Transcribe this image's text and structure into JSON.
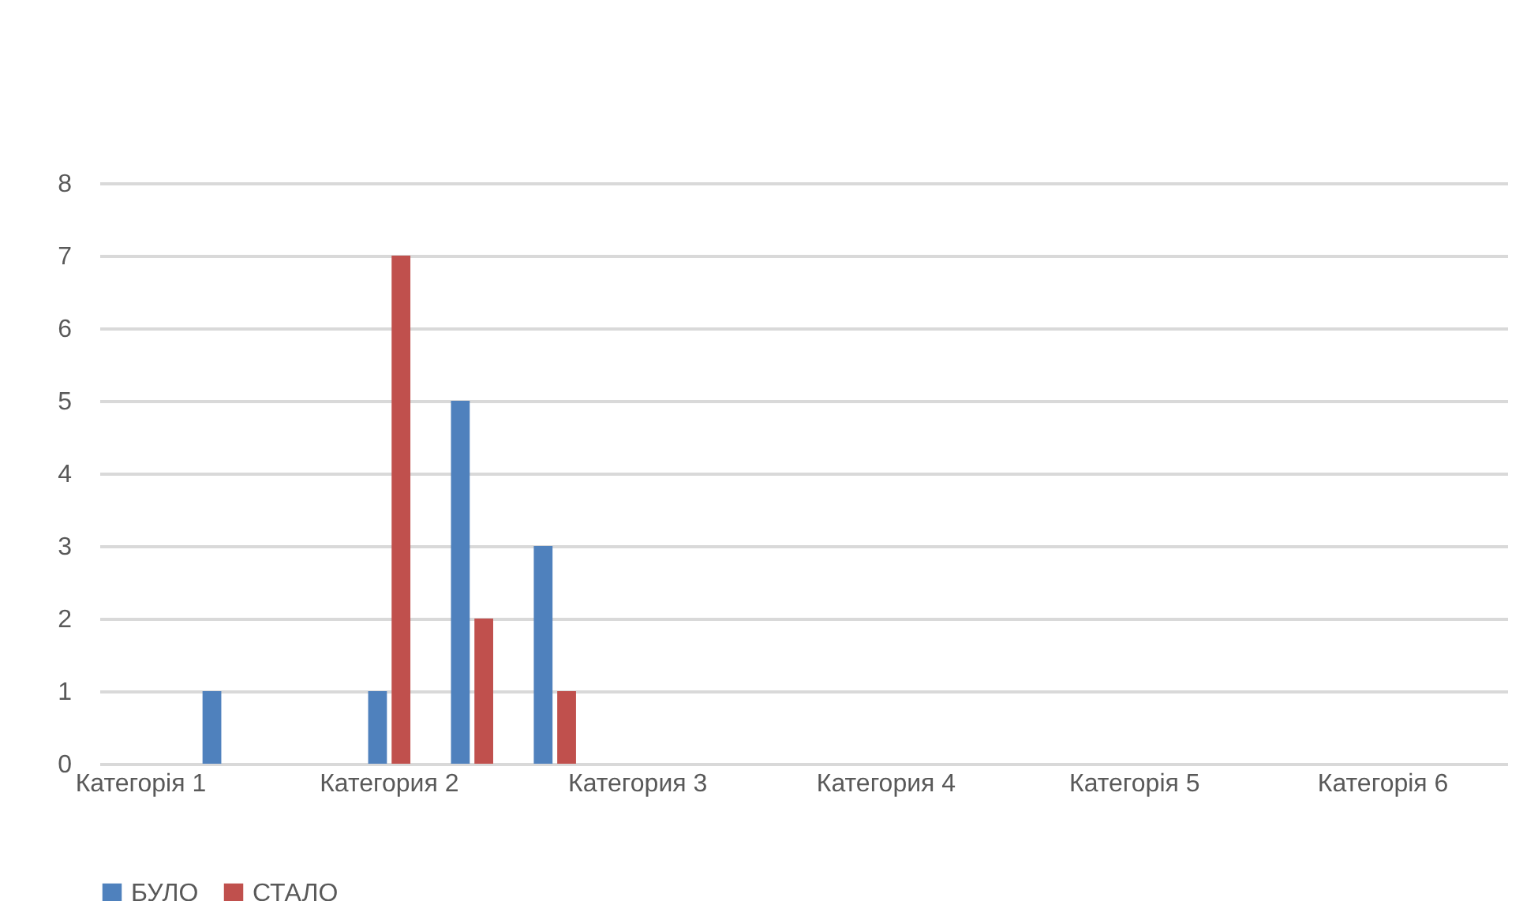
{
  "chart_data": {
    "type": "bar",
    "categories": [
      "Категорія 1",
      null,
      null,
      "Категория 2",
      null,
      null,
      "Категория 3",
      null,
      null,
      "Категория 4",
      null,
      null,
      "Категорія 5",
      null,
      null,
      "Категорія 6",
      null
    ],
    "series": [
      {
        "name": "БУЛО",
        "color": "#4f81bd",
        "values": [
          0,
          1,
          0,
          1,
          5,
          3,
          null,
          null,
          null,
          null,
          null,
          null,
          null,
          null,
          null,
          null,
          null
        ]
      },
      {
        "name": "СТАЛО",
        "color": "#c0504d",
        "values": [
          0,
          0,
          0,
          7,
          2,
          1,
          null,
          null,
          null,
          null,
          null,
          null,
          null,
          null,
          null,
          null,
          null
        ]
      }
    ],
    "ylim": [
      0,
      8
    ],
    "yticks": [
      0,
      1,
      2,
      3,
      4,
      5,
      6,
      7,
      8
    ],
    "grid": "y",
    "legend": "bottom"
  }
}
